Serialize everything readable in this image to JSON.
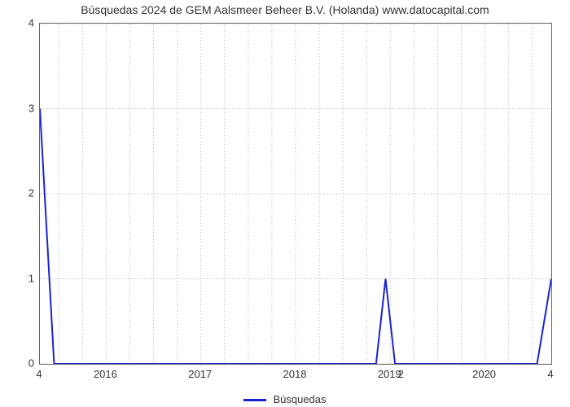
{
  "chart": {
    "type": "line",
    "title": "Búsquedas 2024 de GEM Aalsmeer Beheer B.V. (Holanda) www.datocapital.com",
    "title_fontsize": 14,
    "background_color": "#ffffff",
    "plot_border_color": "#666666",
    "grid_color": "#d0d0d0",
    "grid_dash": "2,2",
    "line_color": "#1923d3",
    "line_width": 2,
    "x": {
      "min": 2015.3,
      "max": 2020.7,
      "ticks": [
        2016,
        2017,
        2018,
        2019,
        2020
      ],
      "tick_labels": [
        "2016",
        "2017",
        "2018",
        "2019",
        "2020"
      ],
      "minor_per_major": 4,
      "secondary_labels": [
        {
          "x": 2015.3,
          "text": "4"
        },
        {
          "x": 2019.12,
          "text": "2"
        },
        {
          "x": 2020.7,
          "text": "4"
        }
      ]
    },
    "y": {
      "min": 0,
      "max": 4,
      "ticks": [
        0,
        1,
        2,
        3,
        4
      ],
      "tick_labels": [
        "0",
        "1",
        "2",
        "3",
        "4"
      ]
    },
    "series": {
      "label": "Búsquedas",
      "points": [
        [
          2015.3,
          3.0
        ],
        [
          2015.45,
          0.0
        ],
        [
          2018.85,
          0.0
        ],
        [
          2018.95,
          1.0
        ],
        [
          2019.05,
          0.0
        ],
        [
          2020.55,
          0.0
        ],
        [
          2020.7,
          1.0
        ]
      ]
    }
  }
}
